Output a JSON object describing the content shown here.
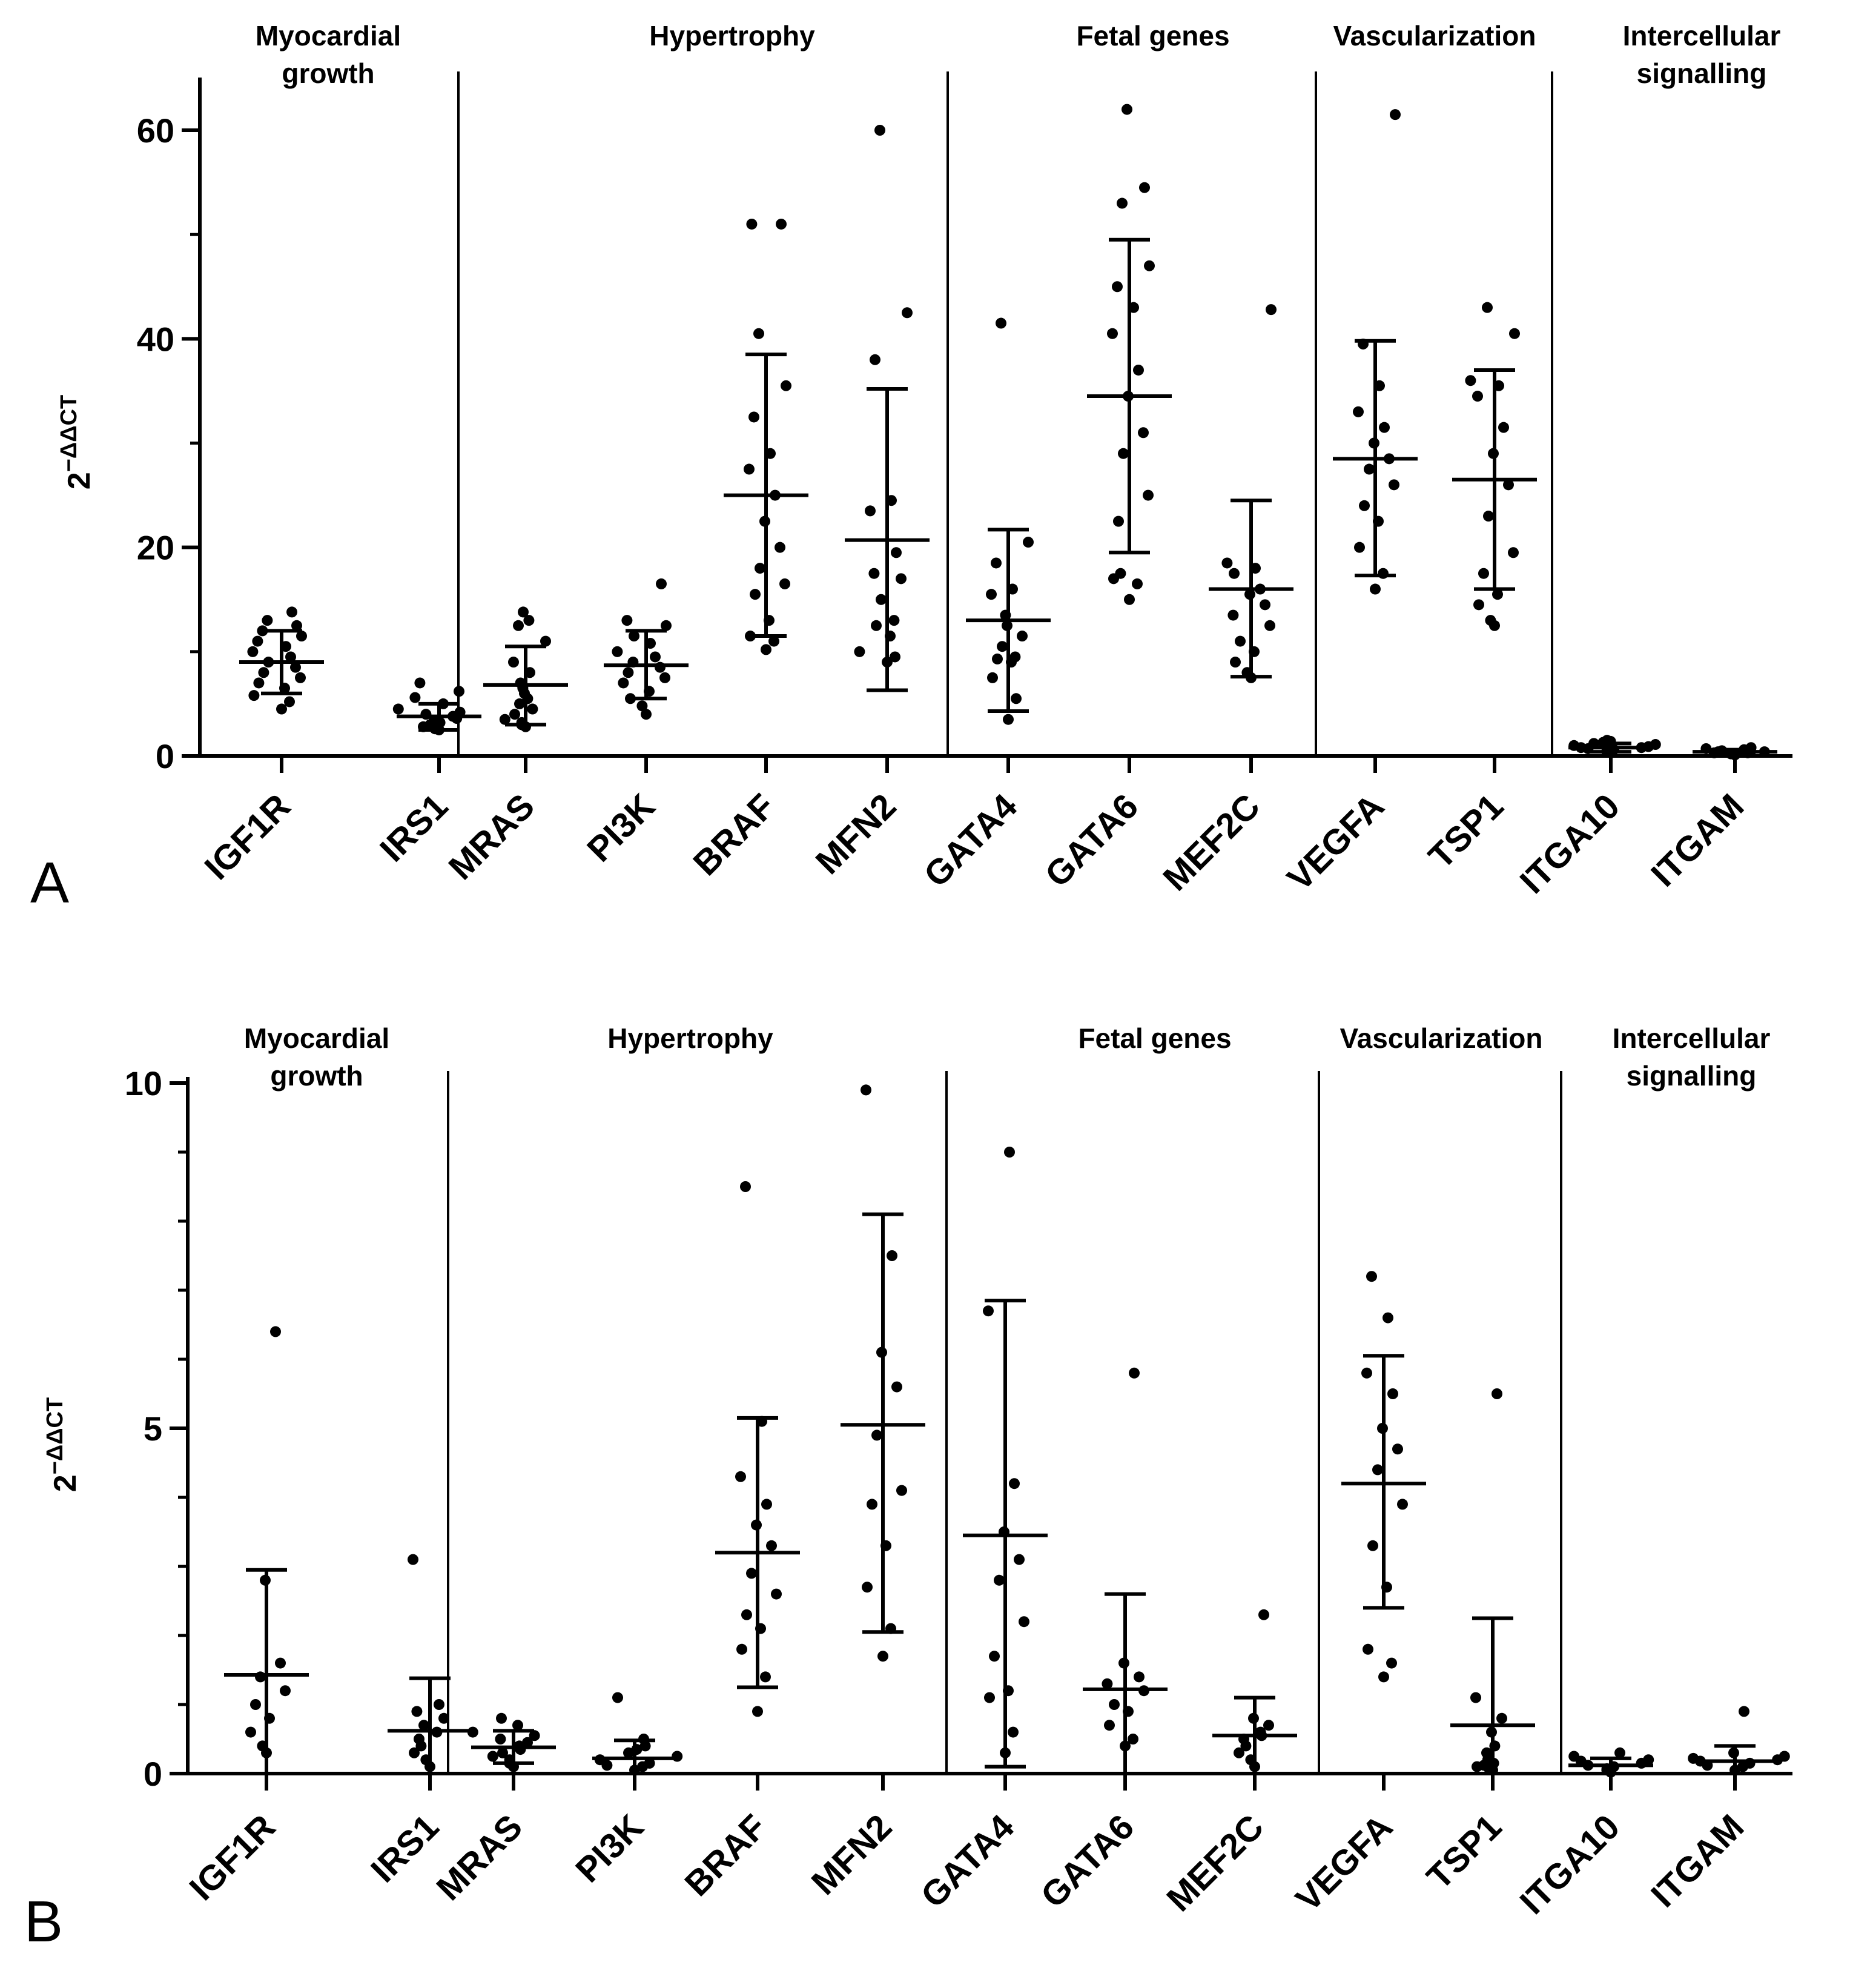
{
  "chart_data": [
    {
      "type": "scatter",
      "panel_letter": "A",
      "ylabel": {
        "base": "2",
        "exponent": "−ΔΔCT"
      },
      "ylim": [
        0,
        65
      ],
      "yticks": [
        "0",
        "20",
        "40",
        "60"
      ],
      "groups": [
        {
          "lines": [
            "Myocardial",
            "growth"
          ],
          "genes": [
            0,
            1
          ]
        },
        {
          "lines": [
            "Hypertrophy"
          ],
          "genes": [
            2,
            3,
            4,
            5
          ]
        },
        {
          "lines": [
            "Fetal genes"
          ],
          "genes": [
            6,
            7,
            8
          ]
        },
        {
          "lines": [
            "Vascularization"
          ],
          "genes": [
            9,
            10
          ]
        },
        {
          "lines": [
            "Intercellular",
            "signalling"
          ],
          "genes": [
            11,
            12
          ]
        }
      ],
      "series": [
        {
          "name": "IGF1R",
          "mean": 9.0,
          "sd_low": 6.0,
          "sd_high": 12.0,
          "points": [
            4.5,
            5.2,
            5.8,
            6.5,
            7.0,
            7.5,
            8.0,
            8.5,
            9.0,
            9.5,
            10.0,
            10.5,
            11.0,
            11.5,
            12.0,
            12.5,
            13.0,
            13.8
          ]
        },
        {
          "name": "IRS1",
          "mean": 3.8,
          "sd_low": 2.5,
          "sd_high": 5.0,
          "points": [
            2.5,
            2.6,
            2.8,
            3.0,
            3.2,
            3.4,
            3.6,
            3.8,
            4.0,
            4.2,
            4.5,
            5.0,
            5.6,
            6.2,
            7.0
          ]
        },
        {
          "name": "MRAS",
          "mean": 6.8,
          "sd_low": 3.0,
          "sd_high": 10.5,
          "points": [
            2.8,
            3.0,
            3.2,
            3.5,
            4.0,
            4.5,
            5.0,
            5.5,
            6.0,
            6.5,
            7.0,
            8.0,
            9.0,
            11.0,
            12.5,
            13.0,
            13.8
          ]
        },
        {
          "name": "PI3K",
          "mean": 8.7,
          "sd_low": 5.5,
          "sd_high": 12.0,
          "points": [
            4.0,
            4.8,
            5.5,
            6.2,
            7.0,
            7.5,
            8.0,
            8.5,
            9.0,
            9.5,
            10.0,
            10.8,
            11.5,
            12.5,
            13.0,
            16.5
          ]
        },
        {
          "name": "BRAF",
          "mean": 25.0,
          "sd_low": 11.5,
          "sd_high": 38.5,
          "points": [
            10.2,
            11.0,
            11.5,
            13.0,
            15.5,
            16.5,
            18.0,
            20.0,
            22.5,
            25.0,
            27.5,
            29.0,
            32.5,
            35.5,
            40.5,
            51.0,
            51.0
          ]
        },
        {
          "name": "MFN2",
          "mean": 20.7,
          "sd_low": 6.3,
          "sd_high": 35.2,
          "points": [
            9.0,
            9.5,
            10.0,
            11.5,
            12.5,
            13.0,
            15.0,
            17.0,
            17.5,
            19.5,
            23.5,
            24.5,
            38.0,
            42.5,
            60.0
          ]
        },
        {
          "name": "GATA4",
          "mean": 13.0,
          "sd_low": 4.3,
          "sd_high": 21.7,
          "points": [
            3.5,
            5.5,
            7.5,
            9.0,
            9.3,
            9.5,
            10.5,
            11.5,
            12.5,
            13.5,
            15.5,
            16.0,
            18.5,
            20.5,
            41.5
          ]
        },
        {
          "name": "GATA6",
          "mean": 34.5,
          "sd_low": 19.5,
          "sd_high": 49.5,
          "points": [
            15.0,
            16.5,
            17.0,
            17.5,
            22.5,
            25.0,
            29.0,
            31.0,
            34.5,
            37.0,
            40.5,
            43.0,
            45.0,
            47.0,
            53.0,
            54.5,
            62.0
          ]
        },
        {
          "name": "MEF2C",
          "mean": 16.0,
          "sd_low": 7.6,
          "sd_high": 24.5,
          "points": [
            7.5,
            8.0,
            9.0,
            10.0,
            11.0,
            12.5,
            13.5,
            14.5,
            15.5,
            16.0,
            17.5,
            18.0,
            18.5,
            42.8
          ]
        },
        {
          "name": "VEGFA",
          "mean": 28.5,
          "sd_low": 17.3,
          "sd_high": 39.8,
          "points": [
            16.0,
            17.5,
            20.0,
            22.5,
            24.0,
            26.0,
            27.5,
            28.5,
            30.0,
            31.5,
            33.0,
            35.5,
            39.5,
            61.5
          ]
        },
        {
          "name": "TSP1",
          "mean": 26.5,
          "sd_low": 16.0,
          "sd_high": 37.0,
          "points": [
            12.5,
            13.0,
            14.5,
            15.5,
            17.5,
            19.5,
            23.0,
            26.0,
            29.0,
            31.5,
            34.5,
            35.5,
            36.0,
            40.5,
            43.0
          ]
        },
        {
          "name": "ITGA10",
          "mean": 0.8,
          "sd_low": 0.4,
          "sd_high": 1.2,
          "points": [
            0.3,
            0.4,
            0.5,
            0.6,
            0.7,
            0.8,
            0.8,
            0.9,
            1.0,
            1.1,
            1.2,
            1.3,
            1.4,
            1.5
          ]
        },
        {
          "name": "ITGAM",
          "mean": 0.4,
          "sd_low": 0.2,
          "sd_high": 0.6,
          "points": [
            0.1,
            0.2,
            0.2,
            0.3,
            0.3,
            0.4,
            0.4,
            0.5,
            0.5,
            0.6,
            0.7,
            0.8
          ]
        }
      ]
    },
    {
      "type": "scatter",
      "panel_letter": "B",
      "ylabel": {
        "base": "2",
        "exponent": "−ΔΔCT"
      },
      "ylim": [
        0,
        10.5
      ],
      "yticks": [
        "0",
        "5",
        "10"
      ],
      "groups": [
        {
          "lines": [
            "Myocardial",
            "growth"
          ],
          "genes": [
            0,
            1
          ]
        },
        {
          "lines": [
            "Hypertrophy"
          ],
          "genes": [
            2,
            3,
            4,
            5
          ]
        },
        {
          "lines": [
            "Fetal genes"
          ],
          "genes": [
            6,
            7,
            8
          ]
        },
        {
          "lines": [
            "Vascularization"
          ],
          "genes": [
            9,
            10
          ]
        },
        {
          "lines": [
            "Intercellular",
            "signalling"
          ],
          "genes": [
            11,
            12
          ]
        }
      ],
      "series": [
        {
          "name": "IGF1R",
          "mean": 1.43,
          "sd_low": 0.0,
          "sd_high": 2.95,
          "points": [
            0.3,
            0.4,
            0.6,
            0.8,
            1.0,
            1.2,
            1.4,
            1.6,
            2.8,
            6.4
          ]
        },
        {
          "name": "IRS1",
          "mean": 0.62,
          "sd_low": 0.0,
          "sd_high": 1.38,
          "points": [
            0.1,
            0.2,
            0.3,
            0.4,
            0.5,
            0.6,
            0.7,
            0.8,
            0.9,
            1.0,
            3.1
          ]
        },
        {
          "name": "MRAS",
          "mean": 0.38,
          "sd_low": 0.15,
          "sd_high": 0.62,
          "points": [
            0.1,
            0.15,
            0.2,
            0.25,
            0.3,
            0.35,
            0.4,
            0.45,
            0.5,
            0.55,
            0.6,
            0.7,
            0.8
          ]
        },
        {
          "name": "PI3K",
          "mean": 0.22,
          "sd_low": 0.0,
          "sd_high": 0.48,
          "points": [
            0.05,
            0.1,
            0.12,
            0.15,
            0.2,
            0.25,
            0.3,
            0.35,
            0.4,
            0.5,
            1.1
          ]
        },
        {
          "name": "BRAF",
          "mean": 3.2,
          "sd_low": 1.25,
          "sd_high": 5.15,
          "points": [
            0.9,
            1.4,
            1.8,
            2.1,
            2.3,
            2.6,
            2.9,
            3.3,
            3.6,
            3.9,
            4.3,
            5.1,
            8.5
          ]
        },
        {
          "name": "MFN2",
          "mean": 5.05,
          "sd_low": 2.05,
          "sd_high": 8.1,
          "points": [
            1.7,
            2.1,
            2.7,
            3.3,
            3.9,
            4.1,
            4.9,
            5.6,
            6.1,
            7.5,
            9.9
          ]
        },
        {
          "name": "GATA4",
          "mean": 3.45,
          "sd_low": 0.1,
          "sd_high": 6.85,
          "points": [
            0.3,
            0.6,
            1.1,
            1.2,
            1.7,
            2.2,
            2.8,
            3.1,
            3.5,
            4.2,
            6.7,
            9.0
          ]
        },
        {
          "name": "GATA6",
          "mean": 1.22,
          "sd_low": 0.0,
          "sd_high": 2.6,
          "points": [
            0.4,
            0.5,
            0.7,
            0.9,
            1.0,
            1.2,
            1.3,
            1.4,
            1.6,
            5.8
          ]
        },
        {
          "name": "MEF2C",
          "mean": 0.55,
          "sd_low": 0.0,
          "sd_high": 1.1,
          "points": [
            0.1,
            0.2,
            0.3,
            0.4,
            0.5,
            0.55,
            0.6,
            0.7,
            0.8,
            2.3
          ]
        },
        {
          "name": "VEGFA",
          "mean": 4.2,
          "sd_low": 2.4,
          "sd_high": 6.05,
          "points": [
            1.4,
            1.6,
            1.8,
            2.7,
            3.3,
            3.9,
            4.4,
            4.7,
            5.0,
            5.5,
            5.8,
            6.6,
            7.2
          ]
        },
        {
          "name": "TSP1",
          "mean": 0.7,
          "sd_low": 0.0,
          "sd_high": 2.25,
          "points": [
            0.05,
            0.08,
            0.1,
            0.12,
            0.15,
            0.2,
            0.3,
            0.4,
            0.6,
            0.8,
            1.1,
            5.5
          ]
        },
        {
          "name": "ITGA10",
          "mean": 0.12,
          "sd_low": 0.0,
          "sd_high": 0.22,
          "points": [
            0.02,
            0.05,
            0.07,
            0.1,
            0.12,
            0.15,
            0.18,
            0.2,
            0.25,
            0.3
          ]
        },
        {
          "name": "ITGAM",
          "mean": 0.18,
          "sd_low": 0.0,
          "sd_high": 0.4,
          "points": [
            0.05,
            0.1,
            0.12,
            0.15,
            0.18,
            0.2,
            0.22,
            0.25,
            0.3,
            0.9
          ]
        }
      ]
    }
  ]
}
